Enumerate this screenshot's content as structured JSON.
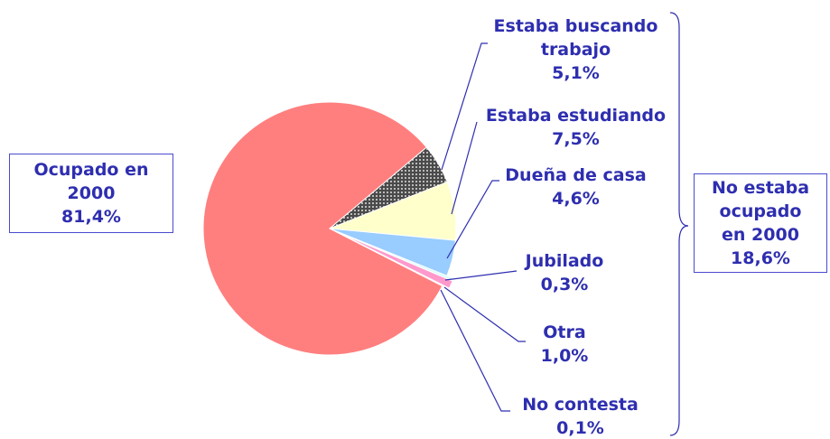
{
  "chart_data": {
    "type": "pie",
    "categories": [
      "Ocupado en 2000",
      "Estaba buscando trabajo",
      "Estaba estudiando",
      "Dueña de casa",
      "Jubilado",
      "Otra",
      "No contesta"
    ],
    "values": [
      81.4,
      5.1,
      7.5,
      4.6,
      0.3,
      1.0,
      0.1
    ],
    "value_labels": [
      "81,4%",
      "5,1%",
      "7,5%",
      "4,6%",
      "0,3%",
      "1,0%",
      "0,1%"
    ],
    "colors": [
      "#ff7f7f",
      "#5a5a5a",
      "#ffffcc",
      "#99ccff",
      "#ccffff",
      "#ff99cc",
      "#c0c0c0"
    ],
    "group": {
      "label": "No estaba ocupado en 2000",
      "value": 18.6,
      "value_label": "18,6%"
    }
  }
}
